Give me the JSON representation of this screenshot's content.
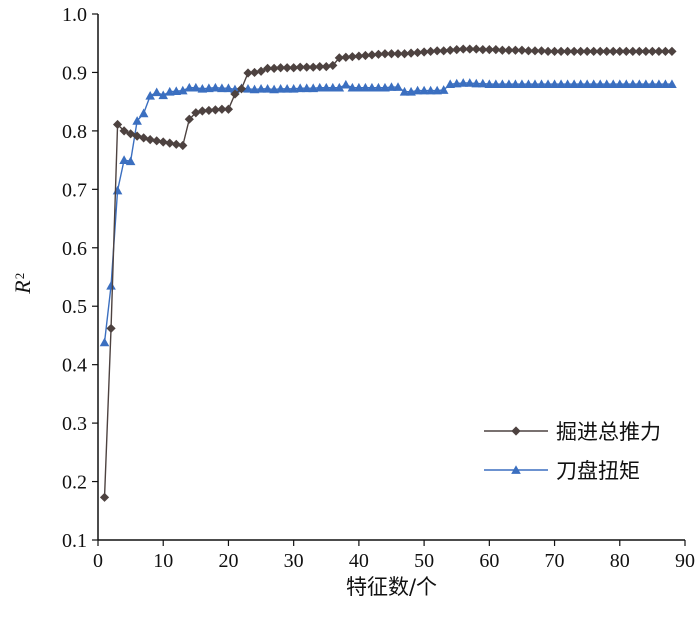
{
  "chart_data": {
    "type": "line",
    "title": "",
    "xlabel": "特征数/个",
    "ylabel": "R",
    "ylabel_superscript": "2",
    "xlim": [
      0,
      90
    ],
    "ylim": [
      0.1,
      1.0
    ],
    "xticks": [
      "0",
      "10",
      "20",
      "30",
      "40",
      "50",
      "60",
      "70",
      "80",
      "90"
    ],
    "yticks": [
      "0.1",
      "0.2",
      "0.3",
      "0.4",
      "0.5",
      "0.6",
      "0.7",
      "0.8",
      "0.9",
      "1.0"
    ],
    "grid": false,
    "legend_position": "bottom-right",
    "series": [
      {
        "name": "掘进总推力",
        "color": "#4d4240",
        "marker": "diamond",
        "x": [
          1,
          2,
          3,
          4,
          5,
          6,
          7,
          8,
          9,
          10,
          11,
          12,
          13,
          14,
          15,
          16,
          17,
          18,
          19,
          20,
          21,
          22,
          23,
          24,
          25,
          26,
          27,
          28,
          29,
          30,
          31,
          32,
          33,
          34,
          35,
          36,
          37,
          38,
          39,
          40,
          41,
          42,
          43,
          44,
          45,
          46,
          47,
          48,
          49,
          50,
          51,
          52,
          53,
          54,
          55,
          56,
          57,
          58,
          59,
          60,
          61,
          62,
          63,
          64,
          65,
          66,
          67,
          68,
          69,
          70,
          71,
          72,
          73,
          74,
          75,
          76,
          77,
          78,
          79,
          80,
          81,
          82,
          83,
          84,
          85,
          86,
          87,
          88
        ],
        "values": [
          0.173,
          0.462,
          0.811,
          0.8,
          0.795,
          0.791,
          0.788,
          0.785,
          0.783,
          0.781,
          0.779,
          0.777,
          0.775,
          0.82,
          0.831,
          0.834,
          0.835,
          0.836,
          0.837,
          0.837,
          0.863,
          0.872,
          0.899,
          0.9,
          0.902,
          0.907,
          0.907,
          0.908,
          0.908,
          0.908,
          0.909,
          0.909,
          0.909,
          0.91,
          0.91,
          0.912,
          0.925,
          0.926,
          0.927,
          0.928,
          0.929,
          0.93,
          0.931,
          0.932,
          0.932,
          0.932,
          0.932,
          0.933,
          0.934,
          0.935,
          0.936,
          0.937,
          0.937,
          0.938,
          0.939,
          0.94,
          0.94,
          0.94,
          0.939,
          0.939,
          0.939,
          0.938,
          0.938,
          0.938,
          0.938,
          0.937,
          0.937,
          0.937,
          0.936,
          0.936,
          0.936,
          0.936,
          0.936,
          0.936,
          0.936,
          0.936,
          0.936,
          0.936,
          0.936,
          0.936,
          0.936,
          0.936,
          0.936,
          0.936,
          0.936,
          0.936,
          0.936,
          0.936
        ]
      },
      {
        "name": "刀盘扭矩",
        "color": "#3b6fc0",
        "marker": "triangle",
        "x": [
          1,
          2,
          3,
          4,
          5,
          6,
          7,
          8,
          9,
          10,
          11,
          12,
          13,
          14,
          15,
          16,
          17,
          18,
          19,
          20,
          21,
          22,
          23,
          24,
          25,
          26,
          27,
          28,
          29,
          30,
          31,
          32,
          33,
          34,
          35,
          36,
          37,
          38,
          39,
          40,
          41,
          42,
          43,
          44,
          45,
          46,
          47,
          48,
          49,
          50,
          51,
          52,
          53,
          54,
          55,
          56,
          57,
          58,
          59,
          60,
          61,
          62,
          63,
          64,
          65,
          66,
          67,
          68,
          69,
          70,
          71,
          72,
          73,
          74,
          75,
          76,
          77,
          78,
          79,
          80,
          81,
          82,
          83,
          84,
          85,
          86,
          87,
          88
        ],
        "values": [
          0.438,
          0.535,
          0.698,
          0.75,
          0.748,
          0.817,
          0.83,
          0.86,
          0.866,
          0.861,
          0.867,
          0.868,
          0.869,
          0.874,
          0.874,
          0.872,
          0.873,
          0.874,
          0.873,
          0.873,
          0.871,
          0.873,
          0.872,
          0.871,
          0.872,
          0.872,
          0.871,
          0.872,
          0.872,
          0.872,
          0.873,
          0.873,
          0.873,
          0.874,
          0.874,
          0.874,
          0.874,
          0.879,
          0.874,
          0.874,
          0.874,
          0.874,
          0.874,
          0.874,
          0.875,
          0.875,
          0.867,
          0.867,
          0.869,
          0.869,
          0.869,
          0.869,
          0.87,
          0.88,
          0.881,
          0.882,
          0.882,
          0.881,
          0.881,
          0.88,
          0.88,
          0.88,
          0.88,
          0.88,
          0.88,
          0.88,
          0.88,
          0.88,
          0.88,
          0.88,
          0.88,
          0.88,
          0.88,
          0.88,
          0.88,
          0.88,
          0.88,
          0.88,
          0.88,
          0.88,
          0.88,
          0.88,
          0.88,
          0.88,
          0.88,
          0.88,
          0.88,
          0.88
        ]
      }
    ]
  }
}
